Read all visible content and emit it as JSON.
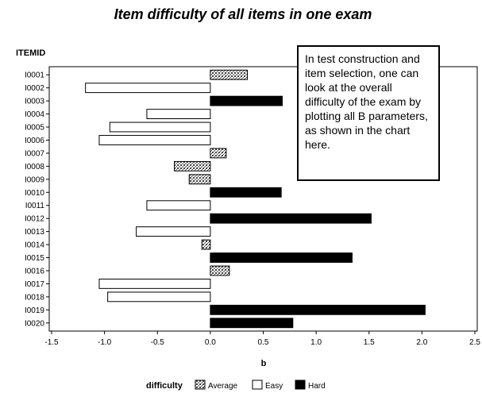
{
  "chart_data": {
    "type": "bar",
    "orientation": "horizontal",
    "title": "Item difficulty of all items in one exam",
    "ylabel": "ITEMID",
    "xlabel": "b",
    "xlim": [
      -1.5,
      2.5
    ],
    "xticks": [
      "-1.5",
      "-1.0",
      "-0.5",
      "0.0",
      "0.5",
      "1.0",
      "1.5",
      "2.0",
      "2.5"
    ],
    "categories": [
      "I0001",
      "I0002",
      "I0003",
      "I0004",
      "I0005",
      "I0006",
      "I0007",
      "I0008",
      "I0009",
      "I0010",
      "I0011",
      "I0012",
      "I0013",
      "I0014",
      "I0015",
      "I0016",
      "I0017",
      "I0018",
      "I0019",
      "I0020"
    ],
    "values": [
      0.35,
      -1.18,
      0.68,
      -0.6,
      -0.95,
      -1.05,
      0.15,
      -0.34,
      -0.2,
      0.67,
      -0.6,
      1.52,
      -0.7,
      -0.08,
      1.34,
      0.18,
      -1.05,
      -0.97,
      2.03,
      0.78
    ],
    "difficulty": [
      "Average",
      "Easy",
      "Hard",
      "Easy",
      "Easy",
      "Easy",
      "Average",
      "Average",
      "Average",
      "Hard",
      "Easy",
      "Hard",
      "Easy",
      "Average",
      "Hard",
      "Average",
      "Easy",
      "Easy",
      "Hard",
      "Hard"
    ],
    "legend": {
      "title": "difficulty",
      "position": "bottom",
      "entries": [
        {
          "name": "Average",
          "style": "hatched"
        },
        {
          "name": "Easy",
          "style": "white"
        },
        {
          "name": "Hard",
          "style": "black"
        }
      ]
    },
    "grid": false
  },
  "annotation": {
    "text": "In test construction and item selection, one can look at the overall difficulty of the exam by plotting all B parameters, as shown in the chart here."
  },
  "colors": {
    "hard": "#000000",
    "easy": "#ffffff",
    "average_fg": "#333333",
    "average_bg": "#ffffff",
    "outline": "#000000"
  }
}
